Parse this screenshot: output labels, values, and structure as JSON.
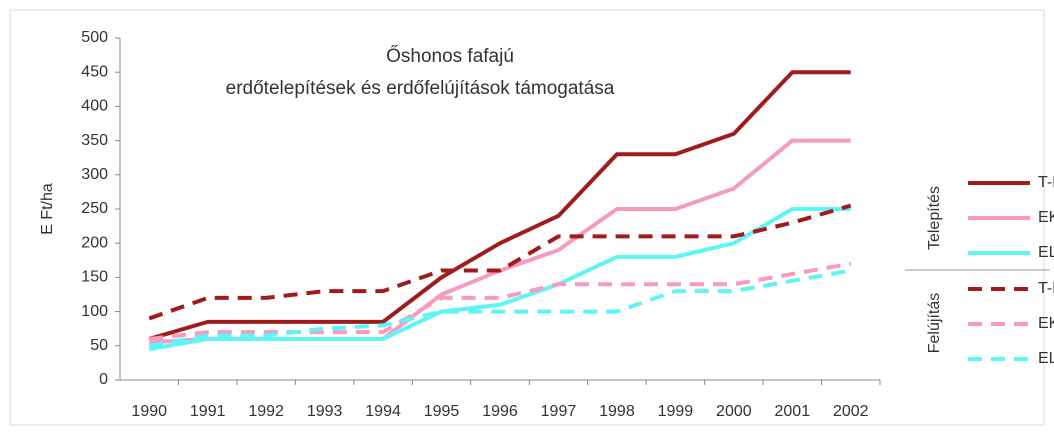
{
  "chart_data": {
    "type": "line",
    "title": [
      "Őshonos fafajú",
      "erdőtelepítések és erdőfelújítások támogatása"
    ],
    "y_label": "E Ft/ha",
    "categories": [
      "1990",
      "1991",
      "1992",
      "1993",
      "1994",
      "1995",
      "1996",
      "1997",
      "1998",
      "1999",
      "2000",
      "2001",
      "2002"
    ],
    "legend_groups": [
      "Telepítés",
      "Felújítás"
    ],
    "series": [
      {
        "name": "T-B",
        "color": "#a01c1c",
        "dashed": false,
        "values": [
          60,
          85,
          85,
          85,
          85,
          150,
          200,
          240,
          330,
          330,
          360,
          450,
          450
        ]
      },
      {
        "name": "EKL",
        "color": "#f79ac0",
        "dashed": false,
        "values": [
          55,
          60,
          60,
          60,
          60,
          125,
          160,
          190,
          250,
          250,
          280,
          350,
          350
        ]
      },
      {
        "name": "ELL",
        "color": "#5ef5f5",
        "dashed": false,
        "values": [
          45,
          60,
          60,
          60,
          60,
          100,
          110,
          140,
          180,
          180,
          200,
          250,
          250
        ]
      },
      {
        "name": "T-B",
        "color": "#a01c1c",
        "dashed": true,
        "values": [
          90,
          120,
          120,
          130,
          130,
          160,
          160,
          210,
          210,
          210,
          210,
          230,
          255
        ]
      },
      {
        "name": "EKL",
        "color": "#f79ac0",
        "dashed": true,
        "values": [
          60,
          70,
          70,
          70,
          70,
          120,
          120,
          140,
          140,
          140,
          140,
          155,
          170
        ]
      },
      {
        "name": "ELL",
        "color": "#5ef5f5",
        "dashed": true,
        "values": [
          50,
          65,
          65,
          75,
          80,
          100,
          100,
          100,
          100,
          130,
          130,
          145,
          160
        ]
      }
    ],
    "ylim": [
      0,
      500
    ],
    "yticks": [
      0,
      50,
      100,
      150,
      200,
      250,
      300,
      350,
      400,
      450,
      500
    ],
    "grid": false
  }
}
